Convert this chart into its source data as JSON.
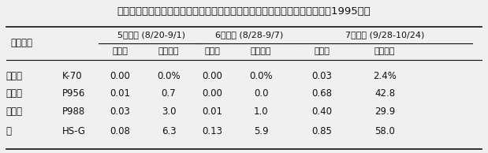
{
  "title": "表２．抵抗性品種および播種期移動による麦角病防除（括弧内は開花盛期、1995年）",
  "col_groups": [
    {
      "label": "5月播種 (8/20-9/1)",
      "subcols": [
        "発病度",
        "発病株率"
      ]
    },
    {
      "label": "6月播種 (8/28-9/7)",
      "subcols": [
        "発病度",
        "発病株率"
      ]
    },
    {
      "label": "7月播種 (9/28-10/24)",
      "subcols": [
        "発病度",
        "発病株率"
      ]
    }
  ],
  "row_header_labels": [
    "供試品種",
    ""
  ],
  "rows": [
    {
      "col1": "抵抗性",
      "col2": "K-70",
      "data": [
        "0.00",
        "0.0%",
        "0.00",
        "0.0%",
        "0.03",
        "2.4%"
      ]
    },
    {
      "col1": "中程度",
      "col2": "P956",
      "data": [
        "0.01",
        "0.7",
        "0.00",
        "0.0",
        "0.68",
        "42.8"
      ]
    },
    {
      "col1": "罹病性",
      "col2": "P988",
      "data": [
        "0.03",
        "3.0",
        "0.01",
        "1.0",
        "0.40",
        "29.9"
      ]
    },
    {
      "col1": "〃",
      "col2": "HS-G",
      "data": [
        "0.08",
        "6.3",
        "0.13",
        "5.9",
        "0.85",
        "58.0"
      ]
    }
  ],
  "bg_color": "#f0f0f0",
  "text_color": "#111111",
  "title_fontsize": 9.5,
  "header_fontsize": 8.5,
  "cell_fontsize": 8.5
}
